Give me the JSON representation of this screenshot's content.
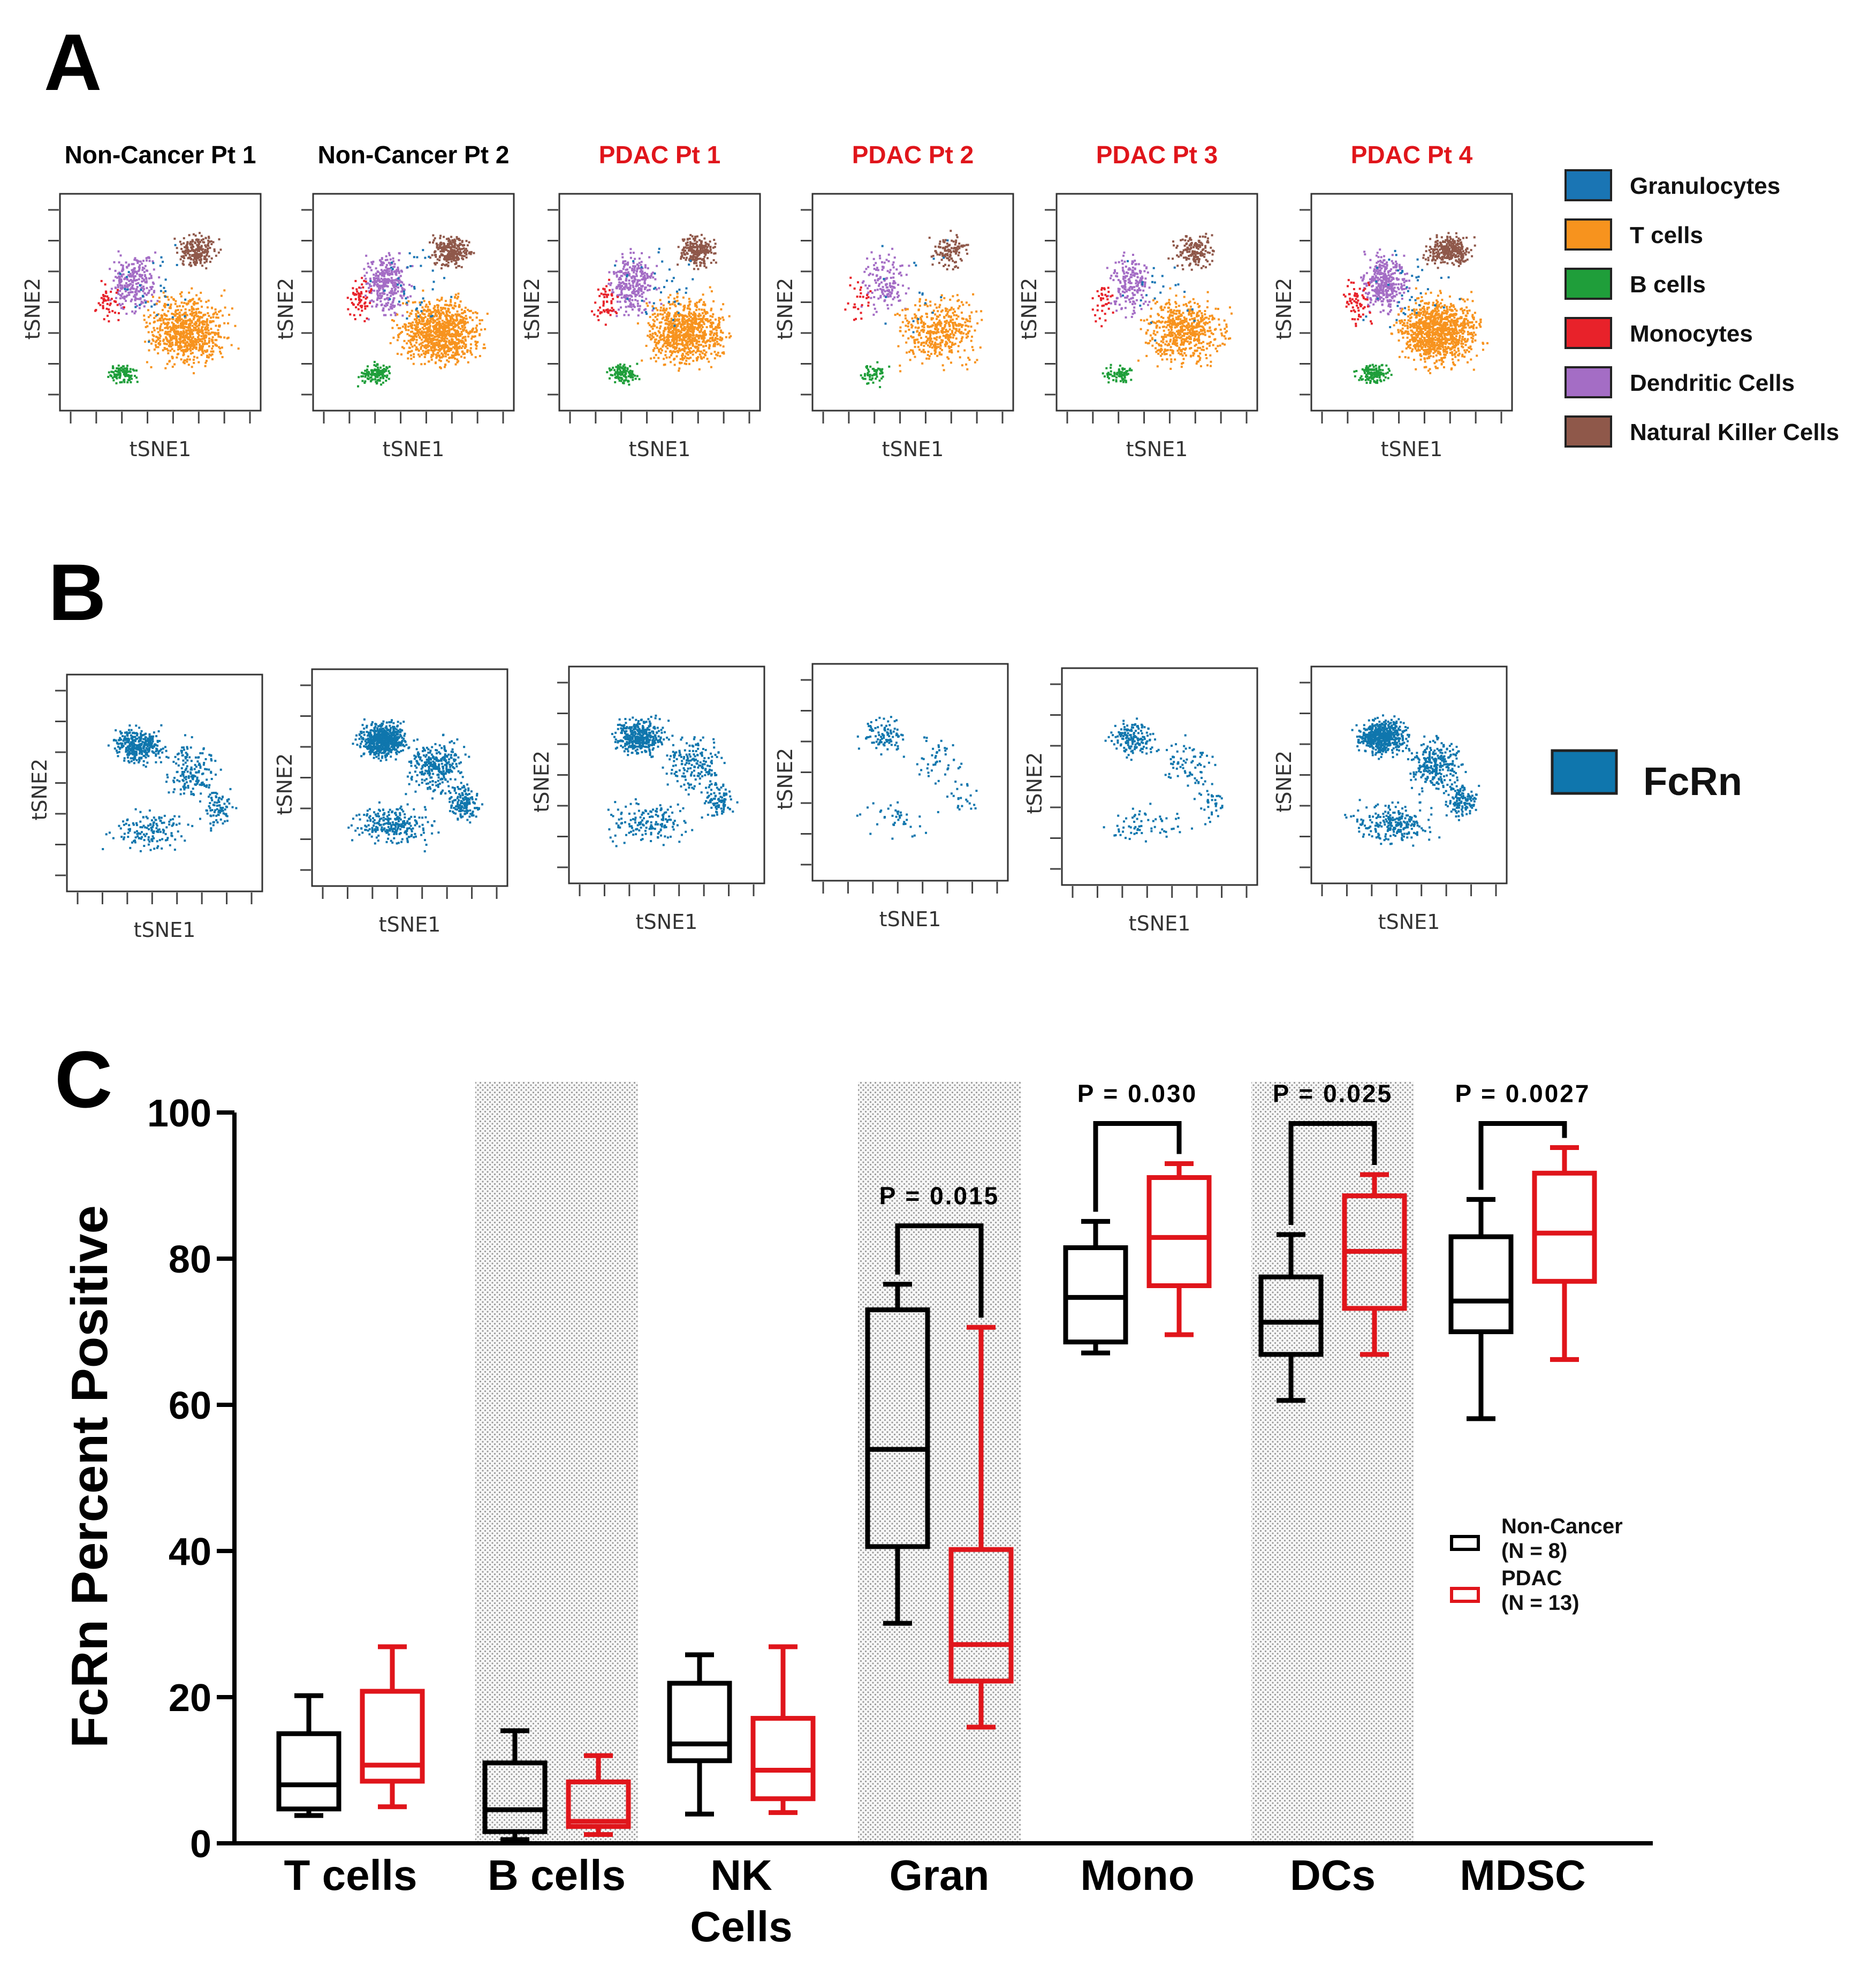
{
  "panels": {
    "a": "A",
    "b": "B",
    "c": "C"
  },
  "panel_a": {
    "patients": [
      {
        "title": "Non-Cancer Pt 1",
        "color": "#000000"
      },
      {
        "title": "Non-Cancer Pt 2",
        "color": "#000000"
      },
      {
        "title": "PDAC Pt 1",
        "color": "#e0151b"
      },
      {
        "title": "PDAC Pt 2",
        "color": "#e0151b"
      },
      {
        "title": "PDAC Pt 3",
        "color": "#e0151b"
      },
      {
        "title": "PDAC Pt 4",
        "color": "#e0151b"
      }
    ],
    "xlabel": "tSNE1",
    "ylabel": "tSNE2",
    "legend": [
      {
        "label": "Granulocytes",
        "color": "#1a75b4"
      },
      {
        "label": "T cells",
        "color": "#f7931e"
      },
      {
        "label": "B cells",
        "color": "#1f9e3a"
      },
      {
        "label": "Monocytes",
        "color": "#e8222a"
      },
      {
        "label": "Dendritic Cells",
        "color": "#a46dc5"
      },
      {
        "label": "Natural Killer Cells",
        "color": "#8f584a"
      }
    ]
  },
  "panel_b": {
    "xlabel": "tSNE1",
    "ylabel": "tSNE2",
    "legend": {
      "label": "FcRn",
      "color": "#0f76ad"
    }
  },
  "chart_data": {
    "type": "box",
    "ylabel": "FcRn Percent Positive",
    "ylim": [
      0,
      100
    ],
    "yticks": [
      0,
      20,
      40,
      60,
      80,
      100
    ],
    "categories": [
      "T cells",
      "B cells",
      "NK\nCells",
      "Gran",
      "Mono",
      "DCs",
      "MDSC"
    ],
    "shaded_categories": [
      "B cells",
      "Gran",
      "DCs"
    ],
    "series": [
      {
        "name": "Non-Cancer\n(N = 8)",
        "color": "#000000",
        "boxes": [
          {
            "min": 3.8,
            "q1": 4.7,
            "median": 8.0,
            "q3": 15.0,
            "max": 20.2
          },
          {
            "min": 0.5,
            "q1": 1.6,
            "median": 4.6,
            "q3": 11.0,
            "max": 15.4
          },
          {
            "min": 4.0,
            "q1": 11.3,
            "median": 13.6,
            "q3": 21.9,
            "max": 25.8
          },
          {
            "min": 30.1,
            "q1": 40.6,
            "median": 53.9,
            "q3": 73.0,
            "max": 76.5
          },
          {
            "min": 67.1,
            "q1": 68.6,
            "median": 74.7,
            "q3": 81.5,
            "max": 85.1
          },
          {
            "min": 60.6,
            "q1": 66.9,
            "median": 71.3,
            "q3": 77.5,
            "max": 83.3
          },
          {
            "min": 58.1,
            "q1": 70.0,
            "median": 74.2,
            "q3": 83.0,
            "max": 88.1
          }
        ]
      },
      {
        "name": "PDAC\n(N = 13)",
        "color": "#e0151b",
        "boxes": [
          {
            "min": 5.0,
            "q1": 8.5,
            "median": 10.7,
            "q3": 20.8,
            "max": 26.9
          },
          {
            "min": 1.2,
            "q1": 2.3,
            "median": 3.0,
            "q3": 8.4,
            "max": 12.0
          },
          {
            "min": 4.2,
            "q1": 6.1,
            "median": 10.0,
            "q3": 17.1,
            "max": 26.9
          },
          {
            "min": 15.9,
            "q1": 22.2,
            "median": 27.2,
            "q3": 40.2,
            "max": 70.6
          },
          {
            "min": 69.6,
            "q1": 76.3,
            "median": 82.9,
            "q3": 91.1,
            "max": 93.0
          },
          {
            "min": 66.9,
            "q1": 73.2,
            "median": 81.0,
            "q3": 88.6,
            "max": 91.5
          },
          {
            "min": 66.2,
            "q1": 76.9,
            "median": 83.5,
            "q3": 91.7,
            "max": 95.2
          }
        ]
      }
    ],
    "significance": [
      {
        "category": "Gran",
        "label": "P = 0.015",
        "bracket_y": 84.5
      },
      {
        "category": "Mono",
        "label": "P = 0.030",
        "bracket_y": 98.5
      },
      {
        "category": "DCs",
        "label": "P = 0.025",
        "bracket_y": 98.5
      },
      {
        "category": "MDSC",
        "label": "P = 0.0027",
        "bracket_y": 98.5
      }
    ]
  }
}
